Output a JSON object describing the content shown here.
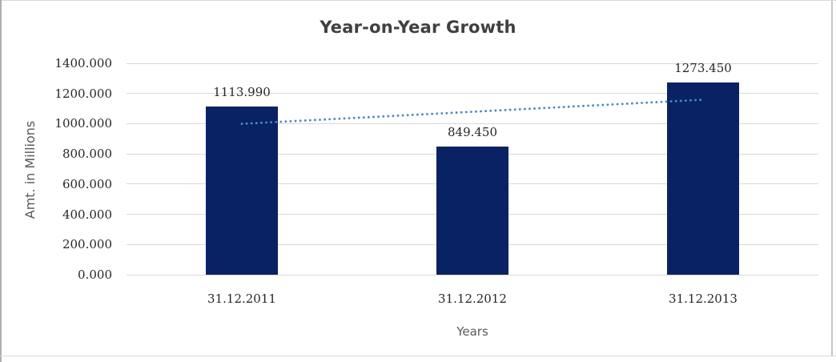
{
  "frame": {
    "background": "#ffffff",
    "border_left_color": "#aeaeae",
    "border_light_color": "#d9d9d9",
    "border_right_color": "#c6c6c6"
  },
  "chart_data": {
    "type": "bar",
    "title": "Year-on-Year Growth",
    "categories": [
      "31.12.2011",
      "31.12.2012",
      "31.12.2013"
    ],
    "values": [
      1113.99,
      849.45,
      1273.45
    ],
    "data_labels": [
      "1113.990",
      "849.450",
      "1273.450"
    ],
    "xlabel": "Years",
    "ylabel": "Amt. in Millions",
    "ylim": [
      0,
      1400
    ],
    "ytick_labels": [
      "1400.000",
      "1200.000",
      "1000.000",
      "800.000",
      "600.000",
      "400.000",
      "200.000",
      "0.000"
    ],
    "grid": true,
    "legend": "none",
    "bar_color": "#092263",
    "gridline_color": "#d9d9d9",
    "title_color": "#404040",
    "tick_label_color": "#262626",
    "axis_title_color": "#595959",
    "trendline": {
      "type": "linear",
      "style": "dotted",
      "color": "#4f87c6",
      "fit_values": [
        999.2,
        1079.0,
        1158.7
      ]
    }
  }
}
